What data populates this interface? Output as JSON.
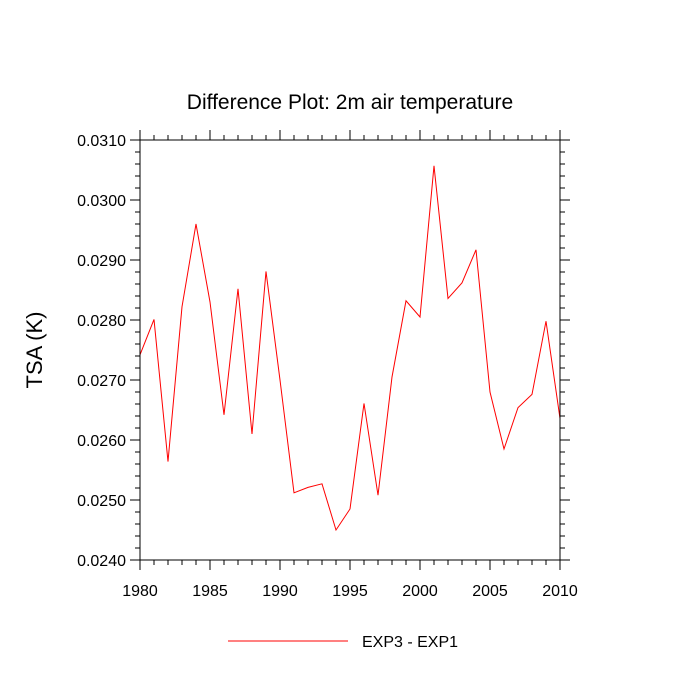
{
  "chart_data": {
    "type": "line",
    "title": "Difference Plot: 2m air temperature",
    "xlabel": "",
    "ylabel": "TSA  (K)",
    "xlim": [
      1980,
      2010
    ],
    "ylim": [
      0.024,
      0.031
    ],
    "x_ticks": [
      1980,
      1985,
      1990,
      1995,
      2000,
      2005,
      2010
    ],
    "x_tick_labels": [
      "1980",
      "1985",
      "1990",
      "1995",
      "2000",
      "2005",
      "2010"
    ],
    "y_ticks": [
      0.024,
      0.025,
      0.026,
      0.027,
      0.028,
      0.029,
      0.03,
      0.031
    ],
    "y_tick_labels": [
      "0.0240",
      "0.0250",
      "0.0260",
      "0.0270",
      "0.0280",
      "0.0290",
      "0.0300",
      "0.0310"
    ],
    "grid": false,
    "legend_position": "bottom-center",
    "series": [
      {
        "name": "EXP3 - EXP1",
        "color": "#ff0000",
        "x": [
          1980,
          1981,
          1982,
          1983,
          1984,
          1985,
          1986,
          1987,
          1988,
          1989,
          1990,
          1991,
          1992,
          1993,
          1994,
          1995,
          1996,
          1997,
          1998,
          1999,
          2000,
          2001,
          2002,
          2003,
          2004,
          2005,
          2006,
          2007,
          2008,
          2009,
          2010
        ],
        "values": [
          0.02742,
          0.02801,
          0.02564,
          0.02822,
          0.0296,
          0.0283,
          0.02642,
          0.02852,
          0.0261,
          0.02881,
          0.027,
          0.02512,
          0.02521,
          0.02527,
          0.0245,
          0.02485,
          0.02661,
          0.02508,
          0.02705,
          0.02832,
          0.02805,
          0.03057,
          0.02836,
          0.02862,
          0.02917,
          0.0268,
          0.02585,
          0.02654,
          0.02676,
          0.02798,
          0.02636
        ]
      }
    ]
  }
}
